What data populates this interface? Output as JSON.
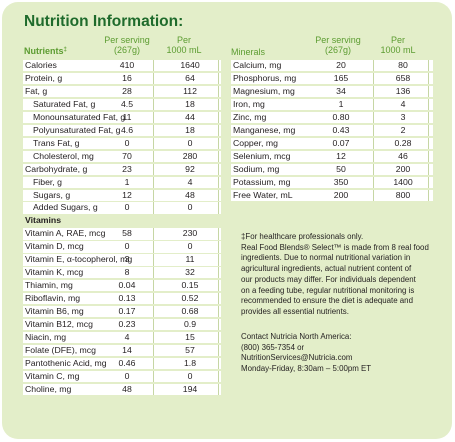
{
  "title": "Nutrition Information:",
  "left_table": {
    "headers": {
      "label": "Nutrients",
      "footnote_mark": "‡",
      "col1_line1": "Per serving",
      "col1_line2": "(267g)",
      "col2_line1": "Per",
      "col2_line2": "1000 mL"
    },
    "rows": [
      {
        "label": "Calories",
        "per_serving": "410",
        "per_1000": "1640",
        "indent": false
      },
      {
        "label": "Protein, g",
        "per_serving": "16",
        "per_1000": "64",
        "indent": false
      },
      {
        "label": "Fat, g",
        "per_serving": "28",
        "per_1000": "112",
        "indent": false
      },
      {
        "label": "Saturated Fat, g",
        "per_serving": "4.5",
        "per_1000": "18",
        "indent": true
      },
      {
        "label": "Monounsaturated Fat, g",
        "per_serving": "11",
        "per_1000": "44",
        "indent": true
      },
      {
        "label": "Polyunsaturated Fat, g",
        "per_serving": "4.6",
        "per_1000": "18",
        "indent": true
      },
      {
        "label": "Trans Fat, g",
        "per_serving": "0",
        "per_1000": "0",
        "indent": true
      },
      {
        "label": "Cholesterol, mg",
        "per_serving": "70",
        "per_1000": "280",
        "indent": true
      },
      {
        "label": "Carbohydrate, g",
        "per_serving": "23",
        "per_1000": "92",
        "indent": false
      },
      {
        "label": "Fiber, g",
        "per_serving": "1",
        "per_1000": "4",
        "indent": true
      },
      {
        "label": "Sugars, g",
        "per_serving": "12",
        "per_1000": "48",
        "indent": true
      },
      {
        "label": "Added Sugars, g",
        "per_serving": "0",
        "per_1000": "0",
        "indent": true
      },
      {
        "label": "Vitamins",
        "per_serving": "",
        "per_1000": "",
        "indent": false,
        "section": true
      },
      {
        "label": "Vitamin A, RAE, mcg",
        "per_serving": "58",
        "per_1000": "230",
        "indent": false
      },
      {
        "label": "Vitamin D, mcg",
        "per_serving": "0",
        "per_1000": "0",
        "indent": false
      },
      {
        "label": "Vitamin E, α-tocopherol, mg",
        "per_serving": "3",
        "per_1000": "11",
        "indent": false
      },
      {
        "label": "Vitamin K, mcg",
        "per_serving": "8",
        "per_1000": "32",
        "indent": false
      },
      {
        "label": "Thiamin, mg",
        "per_serving": "0.04",
        "per_1000": "0.15",
        "indent": false
      },
      {
        "label": "Riboflavin, mg",
        "per_serving": "0.13",
        "per_1000": "0.52",
        "indent": false
      },
      {
        "label": "Vitamin B6, mg",
        "per_serving": "0.17",
        "per_1000": "0.68",
        "indent": false
      },
      {
        "label": "Vitamin B12, mcg",
        "per_serving": "0.23",
        "per_1000": "0.9",
        "indent": false
      },
      {
        "label": "Niacin, mg",
        "per_serving": "4",
        "per_1000": "15",
        "indent": false
      },
      {
        "label": "Folate (DFE), mcg",
        "per_serving": "14",
        "per_1000": "57",
        "indent": false
      },
      {
        "label": "Pantothenic Acid, mg",
        "per_serving": "0.46",
        "per_1000": "1.8",
        "indent": false
      },
      {
        "label": "Vitamin C, mg",
        "per_serving": "0",
        "per_1000": "0",
        "indent": false
      },
      {
        "label": "Choline, mg",
        "per_serving": "48",
        "per_1000": "194",
        "indent": false
      }
    ]
  },
  "right_table": {
    "headers": {
      "label": "Minerals",
      "col1_line1": "Per serving",
      "col1_line2": "(267g)",
      "col2_line1": "Per",
      "col2_line2": "1000 mL"
    },
    "rows": [
      {
        "label": "Calcium, mg",
        "per_serving": "20",
        "per_1000": "80"
      },
      {
        "label": "Phosphorus, mg",
        "per_serving": "165",
        "per_1000": "658"
      },
      {
        "label": "Magnesium, mg",
        "per_serving": "34",
        "per_1000": "136"
      },
      {
        "label": "Iron, mg",
        "per_serving": "1",
        "per_1000": "4"
      },
      {
        "label": "Zinc, mg",
        "per_serving": "0.80",
        "per_1000": "3"
      },
      {
        "label": "Manganese, mg",
        "per_serving": "0.43",
        "per_1000": "2"
      },
      {
        "label": "Copper, mg",
        "per_serving": "0.07",
        "per_1000": "0.28"
      },
      {
        "label": "Selenium, mcg",
        "per_serving": "12",
        "per_1000": "46"
      },
      {
        "label": "Sodium, mg",
        "per_serving": "50",
        "per_1000": "200"
      },
      {
        "label": "Potassium, mg",
        "per_serving": "350",
        "per_1000": "1400"
      },
      {
        "label": "Free Water, mL",
        "per_serving": "200",
        "per_1000": "800"
      }
    ]
  },
  "footnote_lines": [
    "‡For healthcare professionals only.",
    "Real Food Blends® Select™ is made from 8 real food",
    "ingredients. Due to normal nutritional variation in",
    "agricultural ingredients, actual nutrient content of",
    "our products may differ. For individuals dependent",
    "on a feeding tube, regular nutritional monitoring is",
    "recommended to ensure the diet is adequate and",
    "provides all essential nutrients."
  ],
  "contact_lines": [
    "Contact Nutricia North America:",
    "(800) 365-7354 or",
    "NutritionServices@Nutricia.com",
    "Monday-Friday, 8:30am – 5:00pm ET"
  ],
  "colors": {
    "panel_background": "#e3eec9",
    "title": "#1f6b2c",
    "header_text": "#5c9c31",
    "row_background": "#ffffff",
    "separator": "#c6d6a4"
  }
}
